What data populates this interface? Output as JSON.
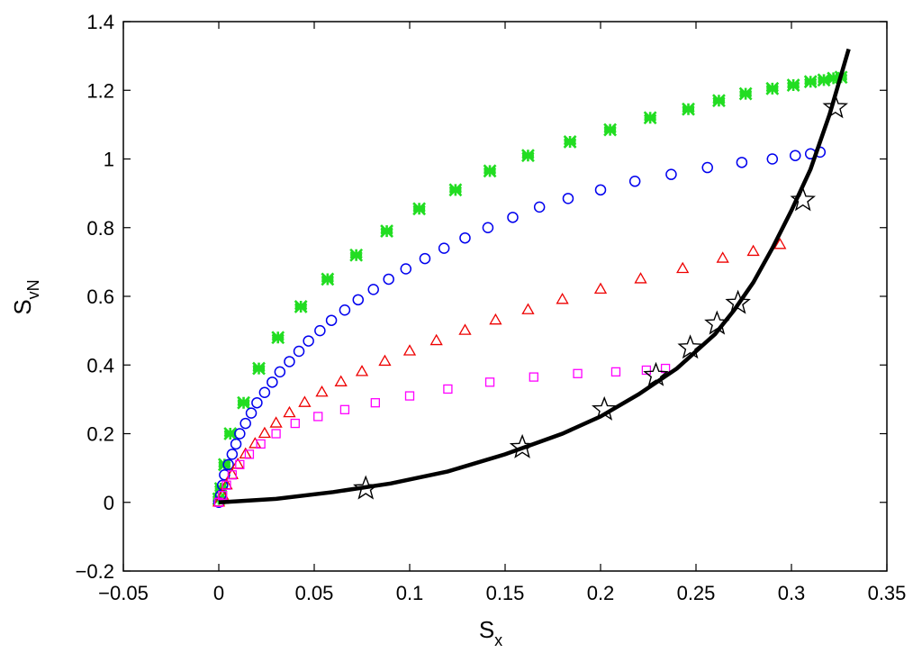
{
  "chart_data": {
    "type": "scatter",
    "title": "",
    "xlabel": {
      "main": "S",
      "sub": "x"
    },
    "ylabel": {
      "main": "S",
      "sub": "vN"
    },
    "xlim": [
      -0.05,
      0.35
    ],
    "ylim": [
      -0.2,
      1.4
    ],
    "xticks": [
      "−0.05",
      "0",
      "0.05",
      "0.1",
      "0.15",
      "0.2",
      "0.25",
      "0.3",
      "0.35"
    ],
    "xtick_values": [
      -0.05,
      0,
      0.05,
      0.1,
      0.15,
      0.2,
      0.25,
      0.3,
      0.35
    ],
    "yticks": [
      "−0.2",
      "0",
      "0.2",
      "0.4",
      "0.6",
      "0.8",
      "1",
      "1.2",
      "1.4"
    ],
    "ytick_values": [
      -0.2,
      0,
      0.2,
      0.4,
      0.6,
      0.8,
      1,
      1.2,
      1.4
    ],
    "grid": false,
    "legend": "none",
    "series": [
      {
        "marker": "asterisk",
        "color": "#22dd22",
        "points": [
          [
            0,
            0.01
          ],
          [
            0.001,
            0.04
          ],
          [
            0.003,
            0.11
          ],
          [
            0.006,
            0.2
          ],
          [
            0.013,
            0.29
          ],
          [
            0.021,
            0.39
          ],
          [
            0.031,
            0.48
          ],
          [
            0.043,
            0.57
          ],
          [
            0.057,
            0.65
          ],
          [
            0.072,
            0.72
          ],
          [
            0.088,
            0.79
          ],
          [
            0.105,
            0.855
          ],
          [
            0.124,
            0.91
          ],
          [
            0.142,
            0.965
          ],
          [
            0.162,
            1.01
          ],
          [
            0.184,
            1.05
          ],
          [
            0.205,
            1.085
          ],
          [
            0.226,
            1.12
          ],
          [
            0.246,
            1.145
          ],
          [
            0.262,
            1.17
          ],
          [
            0.276,
            1.19
          ],
          [
            0.29,
            1.205
          ],
          [
            0.301,
            1.215
          ],
          [
            0.31,
            1.225
          ],
          [
            0.317,
            1.23
          ],
          [
            0.322,
            1.235
          ],
          [
            0.326,
            1.238
          ]
        ]
      },
      {
        "marker": "circle",
        "color": "#0000ee",
        "points": [
          [
            0,
            0
          ],
          [
            0.001,
            0.02
          ],
          [
            0.002,
            0.05
          ],
          [
            0.003,
            0.08
          ],
          [
            0.005,
            0.11
          ],
          [
            0.007,
            0.14
          ],
          [
            0.009,
            0.17
          ],
          [
            0.011,
            0.2
          ],
          [
            0.014,
            0.23
          ],
          [
            0.017,
            0.26
          ],
          [
            0.02,
            0.29
          ],
          [
            0.024,
            0.32
          ],
          [
            0.028,
            0.35
          ],
          [
            0.032,
            0.38
          ],
          [
            0.037,
            0.41
          ],
          [
            0.042,
            0.44
          ],
          [
            0.047,
            0.47
          ],
          [
            0.053,
            0.5
          ],
          [
            0.059,
            0.53
          ],
          [
            0.066,
            0.56
          ],
          [
            0.073,
            0.59
          ],
          [
            0.081,
            0.62
          ],
          [
            0.089,
            0.65
          ],
          [
            0.098,
            0.68
          ],
          [
            0.108,
            0.71
          ],
          [
            0.118,
            0.74
          ],
          [
            0.129,
            0.77
          ],
          [
            0.141,
            0.8
          ],
          [
            0.154,
            0.83
          ],
          [
            0.168,
            0.86
          ],
          [
            0.183,
            0.885
          ],
          [
            0.2,
            0.91
          ],
          [
            0.218,
            0.935
          ],
          [
            0.237,
            0.955
          ],
          [
            0.256,
            0.975
          ],
          [
            0.274,
            0.99
          ],
          [
            0.29,
            1.0
          ],
          [
            0.302,
            1.01
          ],
          [
            0.31,
            1.015
          ],
          [
            0.315,
            1.02
          ]
        ]
      },
      {
        "marker": "triangle",
        "color": "#ee0000",
        "points": [
          [
            0,
            0
          ],
          [
            0.002,
            0.02
          ],
          [
            0.004,
            0.05
          ],
          [
            0.007,
            0.08
          ],
          [
            0.01,
            0.11
          ],
          [
            0.014,
            0.14
          ],
          [
            0.019,
            0.17
          ],
          [
            0.024,
            0.2
          ],
          [
            0.03,
            0.23
          ],
          [
            0.037,
            0.26
          ],
          [
            0.045,
            0.29
          ],
          [
            0.054,
            0.32
          ],
          [
            0.064,
            0.35
          ],
          [
            0.075,
            0.38
          ],
          [
            0.087,
            0.41
          ],
          [
            0.1,
            0.44
          ],
          [
            0.114,
            0.47
          ],
          [
            0.129,
            0.5
          ],
          [
            0.145,
            0.53
          ],
          [
            0.162,
            0.56
          ],
          [
            0.18,
            0.59
          ],
          [
            0.2,
            0.62
          ],
          [
            0.221,
            0.65
          ],
          [
            0.243,
            0.68
          ],
          [
            0.264,
            0.71
          ],
          [
            0.28,
            0.73
          ],
          [
            0.294,
            0.75
          ]
        ]
      },
      {
        "marker": "square",
        "color": "#ff00ff",
        "points": [
          [
            0,
            0
          ],
          [
            0.002,
            0.02
          ],
          [
            0.004,
            0.05
          ],
          [
            0.007,
            0.08
          ],
          [
            0.011,
            0.11
          ],
          [
            0.016,
            0.14
          ],
          [
            0.022,
            0.17
          ],
          [
            0.03,
            0.2
          ],
          [
            0.04,
            0.23
          ],
          [
            0.052,
            0.25
          ],
          [
            0.066,
            0.27
          ],
          [
            0.082,
            0.29
          ],
          [
            0.1,
            0.31
          ],
          [
            0.12,
            0.33
          ],
          [
            0.142,
            0.35
          ],
          [
            0.165,
            0.365
          ],
          [
            0.188,
            0.375
          ],
          [
            0.208,
            0.38
          ],
          [
            0.224,
            0.385
          ],
          [
            0.234,
            0.39
          ]
        ]
      },
      {
        "marker": "line",
        "color": "#000000",
        "points": [
          [
            0,
            0
          ],
          [
            0.03,
            0.01
          ],
          [
            0.06,
            0.03
          ],
          [
            0.09,
            0.055
          ],
          [
            0.12,
            0.09
          ],
          [
            0.15,
            0.14
          ],
          [
            0.18,
            0.2
          ],
          [
            0.2,
            0.25
          ],
          [
            0.22,
            0.315
          ],
          [
            0.24,
            0.39
          ],
          [
            0.26,
            0.49
          ],
          [
            0.27,
            0.56
          ],
          [
            0.28,
            0.64
          ],
          [
            0.29,
            0.74
          ],
          [
            0.3,
            0.85
          ],
          [
            0.31,
            0.97
          ],
          [
            0.32,
            1.13
          ],
          [
            0.33,
            1.32
          ]
        ]
      },
      {
        "marker": "star",
        "color": "#000000",
        "points": [
          [
            0.077,
            0.04
          ],
          [
            0.159,
            0.16
          ],
          [
            0.202,
            0.27
          ],
          [
            0.229,
            0.37
          ],
          [
            0.247,
            0.45
          ],
          [
            0.261,
            0.52
          ],
          [
            0.272,
            0.58
          ],
          [
            0.306,
            0.88
          ],
          [
            0.323,
            1.15
          ]
        ]
      }
    ]
  }
}
